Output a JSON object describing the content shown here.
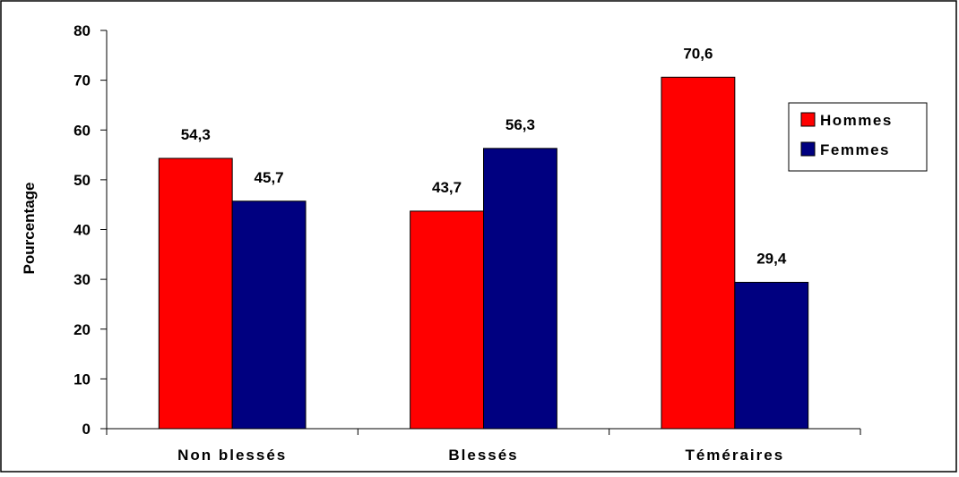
{
  "chart_data": {
    "type": "bar",
    "categories": [
      "Non blessés",
      "Blessés",
      "Téméraires"
    ],
    "series": [
      {
        "name": "Hommes",
        "color": "#ff0000",
        "values": [
          54.3,
          43.7,
          70.6
        ],
        "labels": [
          "54,3",
          "43,7",
          "70,6"
        ]
      },
      {
        "name": "Femmes",
        "color": "#000080",
        "values": [
          45.7,
          56.3,
          29.4
        ],
        "labels": [
          "45,7",
          "56,3",
          "29,4"
        ]
      }
    ],
    "ylabel": "Pourcentage",
    "xlabel": "",
    "title": "",
    "ylim": [
      0,
      80
    ],
    "yticks": [
      "0",
      "10",
      "20",
      "30",
      "40",
      "50",
      "60",
      "70",
      "80"
    ],
    "grid": false,
    "legend_position": "top-right"
  }
}
